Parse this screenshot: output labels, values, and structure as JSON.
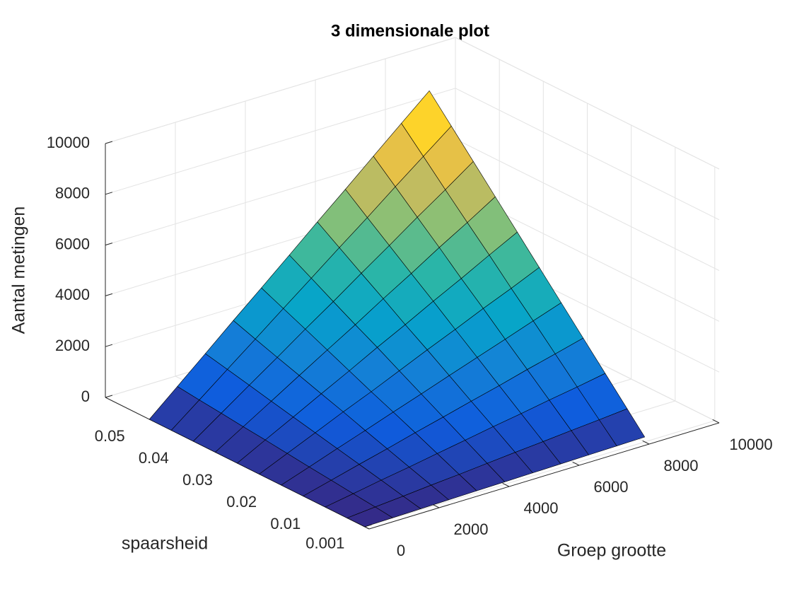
{
  "chart_data": {
    "type": "surface",
    "title": "3 dimensionale plot",
    "xlabel": "Groep grootte",
    "ylabel": "spaarsheid",
    "zlabel": "Aantal metingen",
    "x": [
      0,
      800,
      1600,
      2400,
      3200,
      4000,
      4800,
      5600,
      6400,
      7200,
      8000
    ],
    "y": [
      0.001,
      0.005,
      0.01,
      0.015,
      0.02,
      0.025,
      0.03,
      0.035,
      0.04,
      0.045,
      0.05
    ],
    "z": [
      [
        0,
        19,
        38,
        58,
        77,
        96,
        115,
        134,
        154,
        173,
        192
      ],
      [
        0,
        100,
        190,
        290,
        380,
        480,
        580,
        670,
        770,
        860,
        960
      ],
      [
        0,
        190,
        390,
        570,
        770,
        960,
        1160,
        1340,
        1540,
        1720,
        1920
      ],
      [
        0,
        290,
        580,
        860,
        1160,
        1440,
        1730,
        2010,
        2310,
        2590,
        2880
      ],
      [
        0,
        380,
        770,
        1150,
        1540,
        1920,
        2310,
        2690,
        3070,
        3460,
        3840
      ],
      [
        0,
        480,
        960,
        1450,
        1910,
        2400,
        2890,
        3360,
        3850,
        4310,
        4800
      ],
      [
        0,
        580,
        1150,
        1730,
        2300,
        2890,
        3450,
        4040,
        4600,
        5190,
        5760
      ],
      [
        0,
        670,
        1340,
        2020,
        2690,
        3350,
        4040,
        4700,
        5390,
        6040,
        6720
      ],
      [
        0,
        770,
        1540,
        2300,
        3080,
        3830,
        4610,
        5370,
        6150,
        6900,
        7680
      ],
      [
        0,
        860,
        1730,
        2590,
        3460,
        4320,
        5190,
        6040,
        6920,
        7780,
        8640
      ],
      [
        0,
        960,
        1920,
        2890,
        3840,
        4800,
        5770,
        6720,
        7690,
        8650,
        9600
      ]
    ],
    "xlim": [
      0,
      10000
    ],
    "xticks": [
      0,
      2000,
      4000,
      6000,
      8000,
      10000
    ],
    "ylim": [
      0,
      0.06
    ],
    "yticks": [
      0.001,
      0.01,
      0.02,
      0.03,
      0.04,
      0.05
    ],
    "zlim": [
      0,
      10000
    ],
    "zticks": [
      0,
      2000,
      4000,
      6000,
      8000,
      10000
    ],
    "grid": true,
    "edge_color": "#000000",
    "colormap": [
      "#352a87",
      "#0f5cdd",
      "#1481d6",
      "#06a4ca",
      "#2eb7a4",
      "#87bf77",
      "#d1bb59",
      "#fec832",
      "#f9fb0e"
    ]
  }
}
